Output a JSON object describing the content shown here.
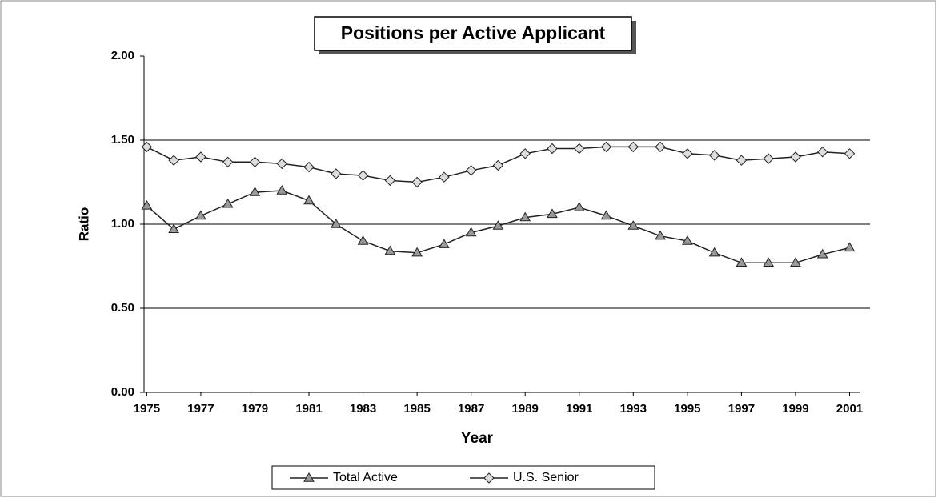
{
  "chart_data": {
    "type": "line",
    "title": "Positions per Active Applicant",
    "x_label": "Year",
    "y_label": "Ratio",
    "x": [
      1975,
      1976,
      1977,
      1978,
      1979,
      1980,
      1981,
      1982,
      1983,
      1984,
      1985,
      1986,
      1987,
      1988,
      1989,
      1990,
      1991,
      1992,
      1993,
      1994,
      1995,
      1996,
      1997,
      1998,
      1999,
      2000,
      2001
    ],
    "xlim": [
      1974.9,
      2001.4
    ],
    "xticks": [
      1975,
      1977,
      1979,
      1981,
      1983,
      1985,
      1987,
      1989,
      1991,
      1993,
      1995,
      1997,
      1999,
      2001
    ],
    "ylim": [
      0,
      2
    ],
    "yticks": [
      {
        "value": 0,
        "label": "0.00"
      },
      {
        "value": 0.5,
        "label": "0.50"
      },
      {
        "value": 1,
        "label": "1.00"
      },
      {
        "value": 1.5,
        "label": "1.50"
      },
      {
        "value": 2,
        "label": "2.00"
      }
    ],
    "grid": true,
    "legend": "bottom",
    "series": [
      {
        "name": "Total Active",
        "color": "#222222",
        "marker": "triangle",
        "values": [
          1.11,
          0.97,
          1.05,
          1.12,
          1.19,
          1.2,
          1.14,
          1.0,
          0.9,
          0.84,
          0.83,
          0.88,
          0.95,
          0.99,
          1.04,
          1.06,
          1.1,
          1.05,
          0.99,
          0.93,
          0.9,
          0.83,
          0.77,
          0.77,
          0.77,
          0.82,
          0.86
        ]
      },
      {
        "name": "U.S. Senior",
        "color": "#222222",
        "marker": "diamond",
        "values": [
          1.46,
          1.38,
          1.4,
          1.37,
          1.37,
          1.36,
          1.34,
          1.3,
          1.29,
          1.26,
          1.25,
          1.28,
          1.32,
          1.35,
          1.42,
          1.45,
          1.45,
          1.46,
          1.46,
          1.46,
          1.42,
          1.41,
          1.38,
          1.39,
          1.4,
          1.43,
          1.42
        ]
      }
    ]
  }
}
